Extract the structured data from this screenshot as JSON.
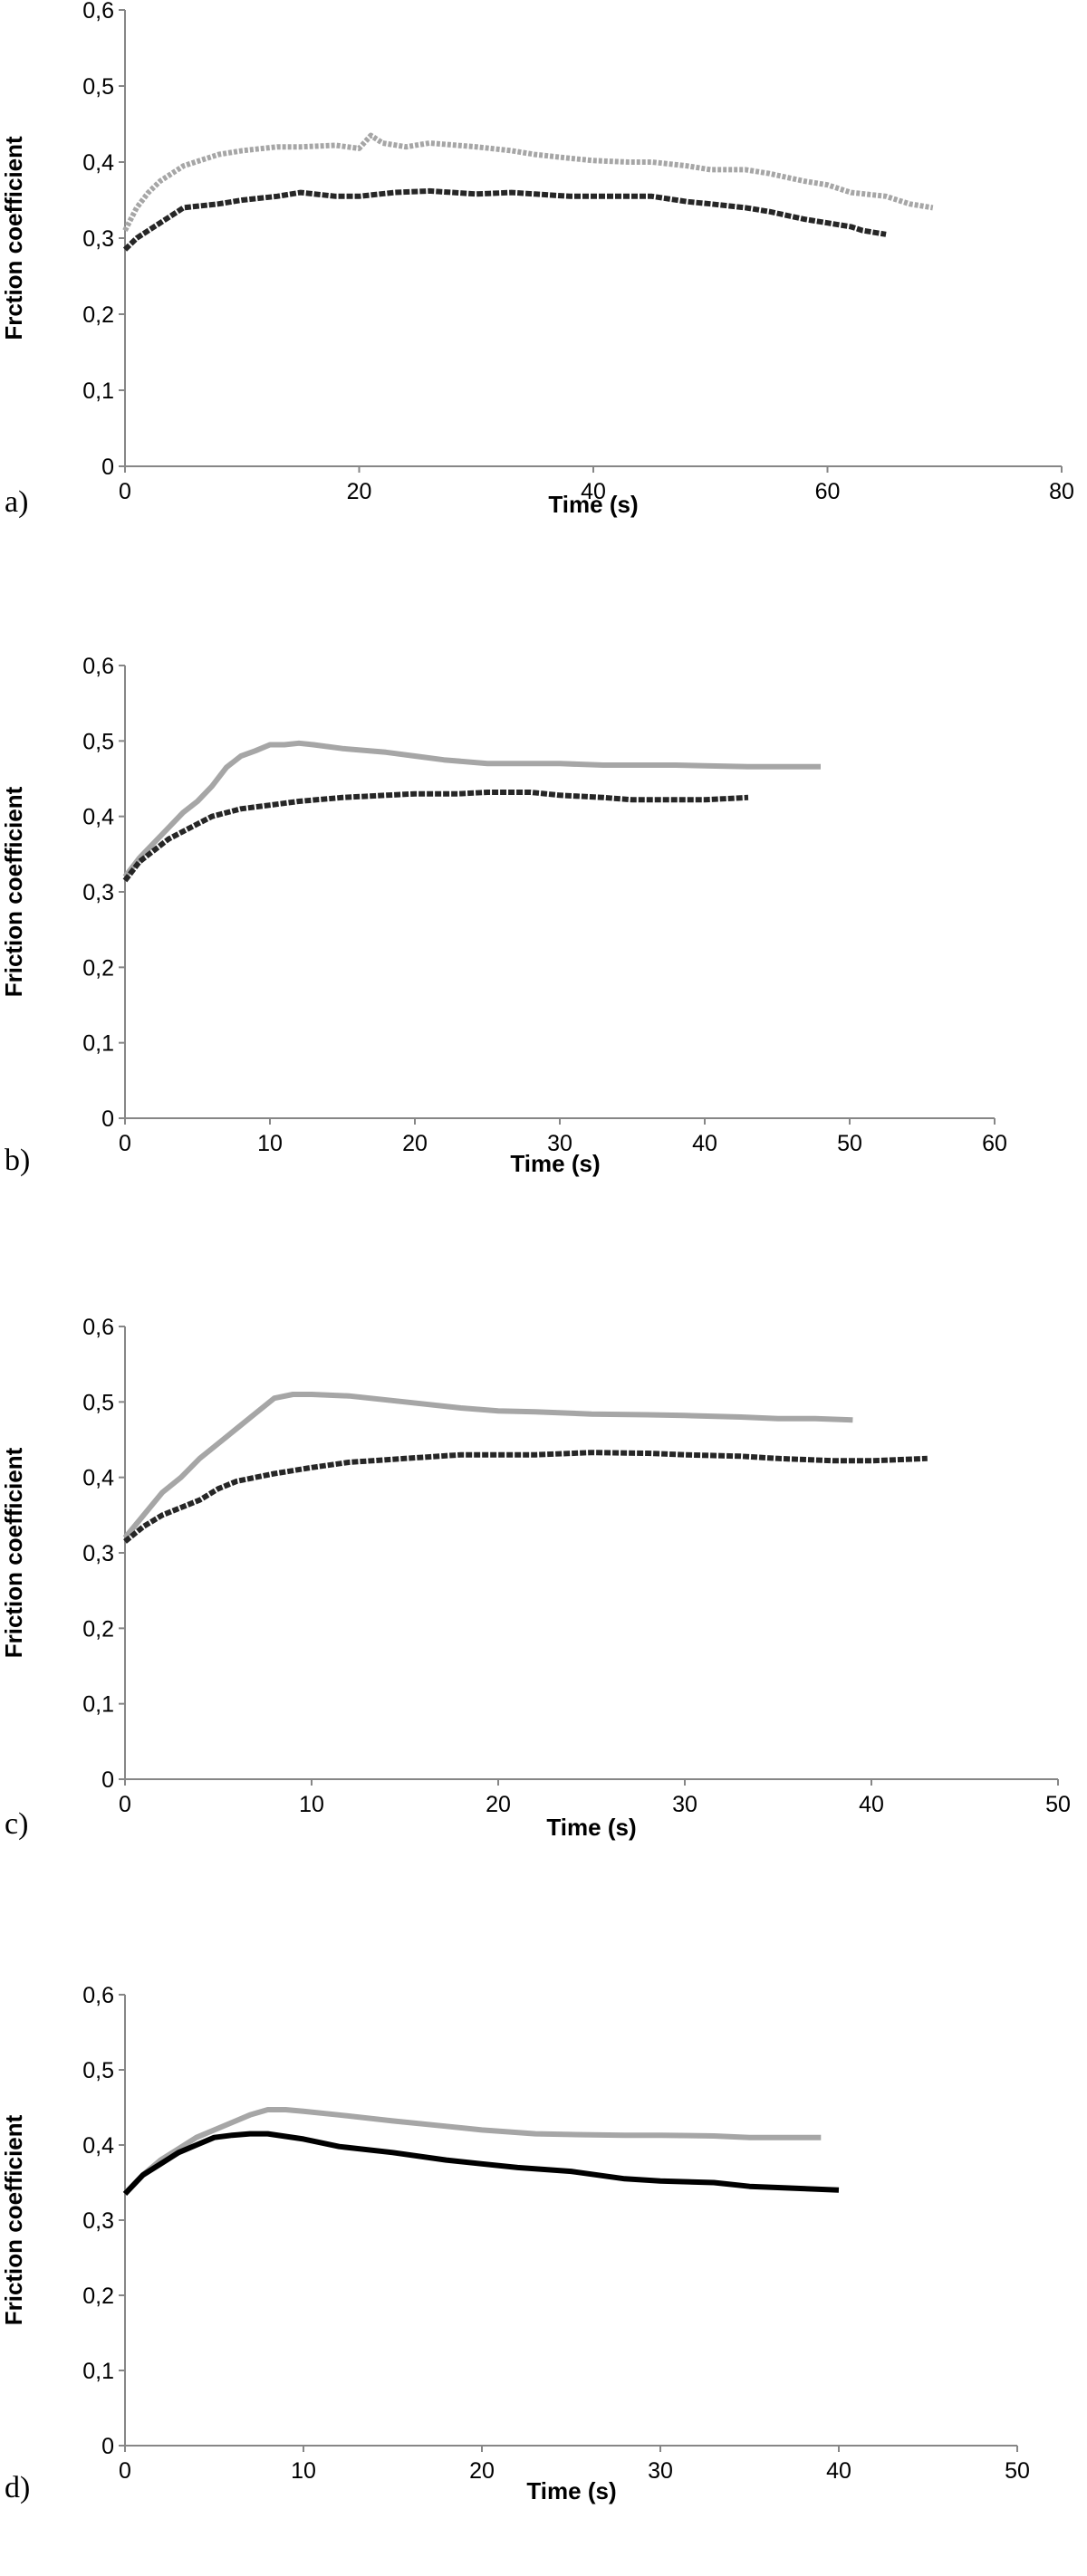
{
  "chart_data": [
    {
      "type": "line",
      "panel_label": "a)",
      "xlabel": "Time (s)",
      "ylabel": "Frction coefficient",
      "xlim": [
        0,
        80
      ],
      "ylim": [
        0,
        0.6
      ],
      "xticks": [
        "0",
        "20",
        "40",
        "60",
        "80"
      ],
      "yticks": [
        "0",
        "0,1",
        "0,2",
        "0,3",
        "0,4",
        "0,5",
        "0,6"
      ],
      "grid": false,
      "series": [
        {
          "color": "#a6a6a6",
          "style": "dotted",
          "x": [
            0,
            1,
            2,
            3,
            5,
            8,
            10,
            13,
            15,
            18,
            20,
            21,
            22,
            24,
            26,
            30,
            33,
            35,
            38,
            40,
            43,
            45,
            48,
            50,
            53,
            55,
            58,
            60,
            61,
            62,
            65,
            67,
            69
          ],
          "y": [
            0.31,
            0.34,
            0.36,
            0.375,
            0.395,
            0.41,
            0.415,
            0.42,
            0.42,
            0.422,
            0.418,
            0.435,
            0.425,
            0.42,
            0.425,
            0.42,
            0.415,
            0.41,
            0.405,
            0.402,
            0.4,
            0.4,
            0.395,
            0.39,
            0.39,
            0.385,
            0.375,
            0.37,
            0.365,
            0.36,
            0.355,
            0.345,
            0.34
          ]
        },
        {
          "color": "#262626",
          "style": "dashed",
          "x": [
            0,
            1,
            2,
            3,
            5,
            8,
            10,
            13,
            15,
            18,
            20,
            23,
            26,
            30,
            33,
            35,
            38,
            40,
            43,
            45,
            48,
            50,
            53,
            55,
            58,
            60,
            62,
            63,
            65
          ],
          "y": [
            0.285,
            0.3,
            0.31,
            0.32,
            0.34,
            0.345,
            0.35,
            0.355,
            0.36,
            0.355,
            0.355,
            0.36,
            0.362,
            0.358,
            0.36,
            0.358,
            0.355,
            0.355,
            0.355,
            0.355,
            0.348,
            0.345,
            0.34,
            0.335,
            0.325,
            0.32,
            0.315,
            0.31,
            0.305
          ]
        }
      ]
    },
    {
      "type": "line",
      "panel_label": "b)",
      "xlabel": "Time (s)",
      "ylabel": "Friction coefficient",
      "xlim": [
        0,
        60
      ],
      "ylim": [
        0,
        0.6
      ],
      "xticks": [
        "0",
        "10",
        "20",
        "30",
        "40",
        "50",
        "60"
      ],
      "yticks": [
        "0",
        "0,1",
        "0,2",
        "0,3",
        "0,4",
        "0,5",
        "0,6"
      ],
      "grid": false,
      "series": [
        {
          "color": "#a6a6a6",
          "style": "solid",
          "x": [
            0,
            1,
            2,
            3,
            4,
            5,
            6,
            7,
            8,
            9,
            10,
            11,
            12,
            13,
            15,
            18,
            20,
            22,
            25,
            28,
            30,
            33,
            35,
            38,
            40,
            43,
            45,
            48
          ],
          "y": [
            0.32,
            0.345,
            0.365,
            0.385,
            0.405,
            0.42,
            0.44,
            0.465,
            0.48,
            0.487,
            0.495,
            0.495,
            0.497,
            0.495,
            0.49,
            0.485,
            0.48,
            0.475,
            0.47,
            0.47,
            0.47,
            0.468,
            0.468,
            0.468,
            0.467,
            0.466,
            0.466,
            0.466
          ]
        },
        {
          "color": "#262626",
          "style": "dashed",
          "x": [
            0,
            1,
            2,
            3,
            4,
            5,
            6,
            7,
            8,
            10,
            12,
            15,
            18,
            20,
            23,
            25,
            28,
            30,
            33,
            35,
            38,
            40,
            43
          ],
          "y": [
            0.315,
            0.34,
            0.355,
            0.37,
            0.38,
            0.39,
            0.4,
            0.405,
            0.41,
            0.415,
            0.42,
            0.425,
            0.428,
            0.43,
            0.43,
            0.432,
            0.432,
            0.428,
            0.425,
            0.422,
            0.422,
            0.422,
            0.425
          ]
        }
      ]
    },
    {
      "type": "line",
      "panel_label": "c)",
      "xlabel": "Time (s)",
      "ylabel": "Friction coefficient",
      "xlim": [
        0,
        50
      ],
      "ylim": [
        0,
        0.6
      ],
      "xticks": [
        "0",
        "10",
        "20",
        "30",
        "40",
        "50"
      ],
      "yticks": [
        "0",
        "0,1",
        "0,2",
        "0,3",
        "0,4",
        "0,5",
        "0,6"
      ],
      "grid": false,
      "series": [
        {
          "color": "#a6a6a6",
          "style": "solid",
          "x": [
            0,
            1,
            2,
            3,
            4,
            5,
            6,
            7,
            8,
            9,
            10,
            12,
            15,
            18,
            20,
            22,
            25,
            28,
            30,
            33,
            35,
            37,
            39
          ],
          "y": [
            0.32,
            0.35,
            0.38,
            0.4,
            0.425,
            0.445,
            0.465,
            0.485,
            0.505,
            0.51,
            0.51,
            0.508,
            0.5,
            0.492,
            0.488,
            0.487,
            0.484,
            0.483,
            0.482,
            0.48,
            0.478,
            0.478,
            0.476
          ]
        },
        {
          "color": "#262626",
          "style": "dashed",
          "x": [
            0,
            1,
            2,
            3,
            4,
            5,
            6,
            8,
            10,
            12,
            15,
            18,
            20,
            22,
            25,
            28,
            30,
            33,
            35,
            38,
            40,
            43
          ],
          "y": [
            0.315,
            0.335,
            0.35,
            0.36,
            0.37,
            0.385,
            0.395,
            0.405,
            0.413,
            0.42,
            0.425,
            0.43,
            0.43,
            0.43,
            0.433,
            0.432,
            0.43,
            0.428,
            0.425,
            0.422,
            0.422,
            0.425
          ]
        }
      ]
    },
    {
      "type": "line",
      "panel_label": "d)",
      "xlabel": "Time (s)",
      "ylabel": "Friction coefficient",
      "xlim": [
        0,
        50
      ],
      "ylim": [
        0,
        0.6
      ],
      "xticks": [
        "0",
        "10",
        "20",
        "30",
        "40",
        "50"
      ],
      "yticks": [
        "0",
        "0,1",
        "0,2",
        "0,3",
        "0,4",
        "0,5",
        "0,6"
      ],
      "grid": false,
      "series": [
        {
          "color": "#a6a6a6",
          "style": "solid",
          "x": [
            0,
            1,
            2,
            3,
            4,
            5,
            6,
            7,
            8,
            9,
            10,
            12,
            15,
            18,
            20,
            23,
            25,
            28,
            30,
            33,
            35,
            37,
            39
          ],
          "y": [
            0.335,
            0.36,
            0.38,
            0.395,
            0.41,
            0.42,
            0.43,
            0.44,
            0.447,
            0.447,
            0.445,
            0.44,
            0.432,
            0.425,
            0.42,
            0.415,
            0.414,
            0.413,
            0.413,
            0.412,
            0.41,
            0.41,
            0.41
          ]
        },
        {
          "color": "#000000",
          "style": "solid",
          "x": [
            0,
            1,
            2,
            3,
            4,
            5,
            6,
            7,
            8,
            10,
            12,
            15,
            18,
            20,
            22,
            25,
            28,
            30,
            33,
            35,
            38,
            40
          ],
          "y": [
            0.335,
            0.36,
            0.375,
            0.39,
            0.4,
            0.41,
            0.413,
            0.415,
            0.415,
            0.408,
            0.398,
            0.39,
            0.38,
            0.375,
            0.37,
            0.365,
            0.355,
            0.352,
            0.35,
            0.345,
            0.342,
            0.34
          ]
        }
      ]
    }
  ]
}
